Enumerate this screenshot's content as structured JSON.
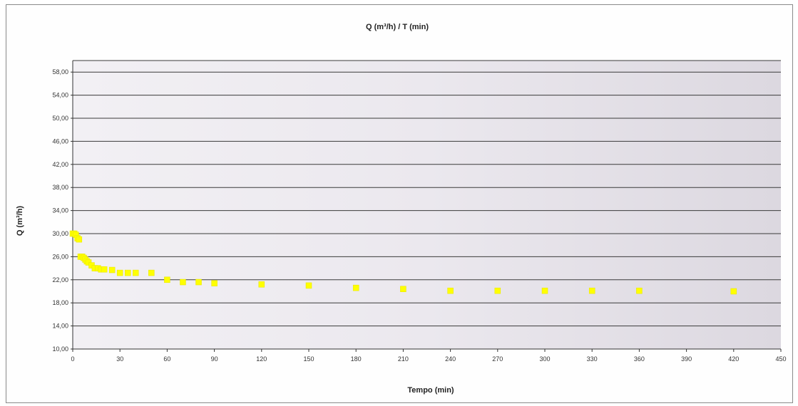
{
  "chart_data": {
    "type": "scatter",
    "title": "Q (m³/h) / T (min)",
    "xlabel": "Tempo (min)",
    "ylabel": "Q (m³/h)",
    "xlim": [
      0,
      450
    ],
    "ylim": [
      10,
      60
    ],
    "x_ticks": [
      0,
      30,
      60,
      90,
      120,
      150,
      180,
      210,
      240,
      270,
      300,
      330,
      360,
      390,
      420,
      450
    ],
    "y_ticks": [
      10,
      14,
      18,
      22,
      26,
      30,
      34,
      38,
      42,
      46,
      50,
      54,
      58
    ],
    "y_tick_labels": [
      "10,00",
      "14,00",
      "18,00",
      "22,00",
      "26,00",
      "30,00",
      "34,00",
      "38,00",
      "42,00",
      "46,00",
      "50,00",
      "54,00",
      "58,00"
    ],
    "grid": true,
    "marker_color": "#ffff00",
    "series": [
      {
        "x": [
          0,
          1,
          2,
          3,
          4,
          5,
          6,
          7,
          8,
          9,
          10,
          12,
          14,
          16,
          18,
          20,
          25,
          30,
          35,
          40,
          50,
          60,
          70,
          80,
          90,
          120,
          150,
          180,
          210,
          240,
          270,
          300,
          330,
          360,
          420
        ],
        "y": [
          30,
          30,
          29.8,
          29.2,
          29,
          26,
          26,
          25.8,
          25.5,
          25.2,
          25,
          24.5,
          24,
          24,
          23.8,
          23.8,
          23.7,
          23.2,
          23.2,
          23.2,
          23.2,
          22,
          21.6,
          21.6,
          21.4,
          21.2,
          21,
          20.6,
          20.4,
          20.1,
          20.1,
          20.1,
          20.1,
          20.1,
          20
        ]
      }
    ]
  }
}
